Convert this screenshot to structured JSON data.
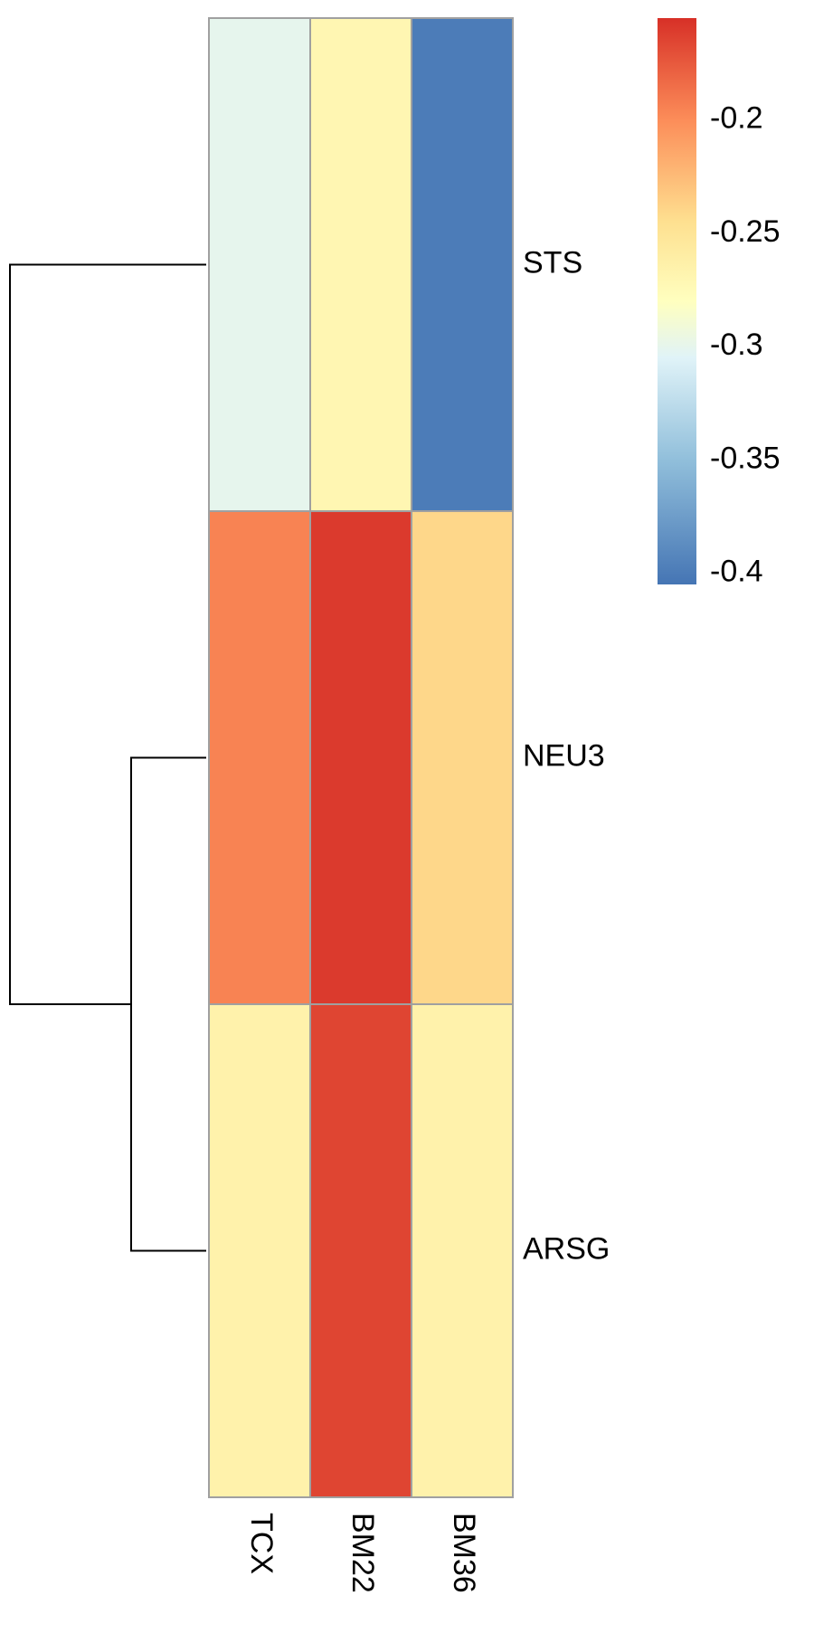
{
  "chart_data": {
    "type": "heatmap",
    "rows": [
      "STS",
      "NEU3",
      "ARSG"
    ],
    "columns": [
      "TCX",
      "BM22",
      "BM36"
    ],
    "values": [
      [
        -0.3,
        -0.27,
        -0.4
      ],
      [
        -0.195,
        -0.16,
        -0.24
      ],
      [
        -0.265,
        -0.165,
        -0.265
      ]
    ],
    "color_scale": {
      "min": -0.405,
      "max": -0.155,
      "stops": [
        {
          "value": -0.405,
          "color": "#4575b4"
        },
        {
          "value": -0.35,
          "color": "#91bfdb"
        },
        {
          "value": -0.305,
          "color": "#e0f3f8"
        },
        {
          "value": -0.28,
          "color": "#ffffbf"
        },
        {
          "value": -0.245,
          "color": "#fee090"
        },
        {
          "value": -0.2,
          "color": "#fc8d59"
        },
        {
          "value": -0.155,
          "color": "#d73027"
        }
      ],
      "ticks": [
        -0.2,
        -0.25,
        -0.3,
        -0.35,
        -0.4
      ],
      "tick_labels": [
        "-0.2",
        "-0.25",
        "-0.3",
        "-0.35",
        "-0.4"
      ]
    },
    "row_dendrogram": {
      "merges": [
        {
          "left": "NEU3",
          "right": "ARSG",
          "height": 1
        },
        {
          "left": "STS",
          "right": "NEU3+ARSG",
          "height": 2
        }
      ]
    },
    "title": "",
    "xlabel": "",
    "ylabel": "",
    "legend_position": "top-right",
    "grid": false
  }
}
